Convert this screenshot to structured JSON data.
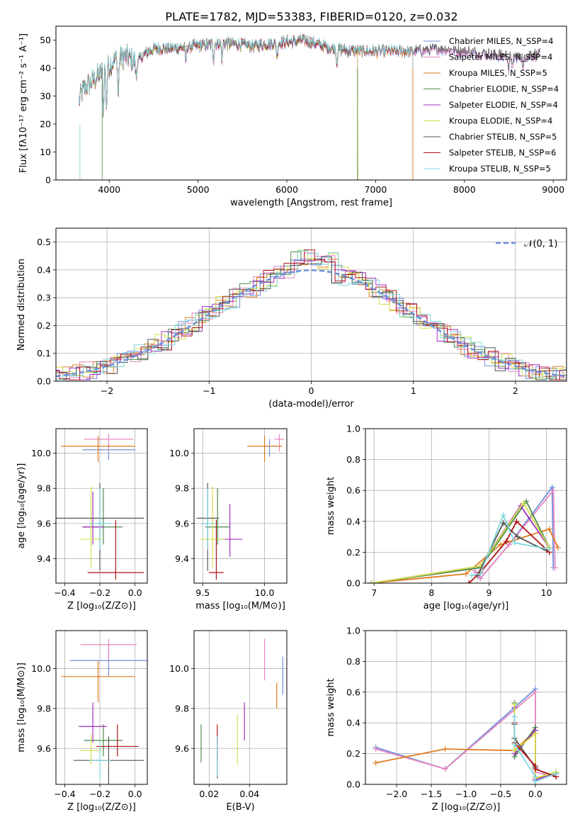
{
  "colors": [
    "#6f8fdc",
    "#e887bf",
    "#e07b1e",
    "#4b8a4b",
    "#a32cc1",
    "#d4e04a",
    "#555555",
    "#b01414",
    "#7fd6de"
  ],
  "chart_data": [
    {
      "id": "spectrum",
      "type": "line",
      "title": "PLATE=1782, MJD=53383, FIBERID=0120, z=0.032",
      "xlabel": "wavelength [Angstrom, rest frame]",
      "ylabel": "Flux [fλ10⁻¹⁷ erg cm⁻² s⁻¹ A⁻¹]",
      "xlim": [
        3400,
        9150
      ],
      "ylim": [
        0,
        55
      ],
      "xticks": [
        4000,
        5000,
        6000,
        7000,
        8000,
        9000
      ],
      "yticks": [
        0,
        10,
        20,
        30,
        40,
        50
      ],
      "grid": false,
      "legend_position": "right",
      "continuum": {
        "x": [
          3650,
          3700,
          3800,
          3900,
          4000,
          4100,
          4200,
          4300,
          4400,
          4500,
          4700,
          5000,
          5300,
          5600,
          5900,
          6200,
          6500,
          6800,
          7100,
          7400,
          7700,
          8000,
          8300,
          8600,
          8800
        ],
        "y": [
          27,
          32,
          35,
          38,
          41,
          44,
          44,
          42,
          45,
          47,
          47,
          48,
          49,
          48,
          49,
          50,
          47,
          46,
          46,
          46,
          47,
          46,
          45,
          44,
          45
        ]
      },
      "series": [
        {
          "name": "Chabrier MILES, N_SSP=4",
          "end": 8850
        },
        {
          "name": "Salpeter MILES, N_SSP=4",
          "end": 8850
        },
        {
          "name": "Kroupa MILES, N_SSP=5",
          "end": 7420
        },
        {
          "name": "Chabrier ELODIE, N_SSP=4",
          "end": 6800
        },
        {
          "name": "Salpeter ELODIE, N_SSP=4",
          "end": 6800
        },
        {
          "name": "Kroupa ELODIE, N_SSP=4",
          "end": 6800
        },
        {
          "name": "Chabrier STELIB, N_SSP=5",
          "end": 8850
        },
        {
          "name": "Salpeter STELIB, N_SSP=6",
          "end": 7420
        },
        {
          "name": "Kroupa STELIB, N_SSP=5",
          "end": 7420
        }
      ]
    },
    {
      "id": "residuals",
      "type": "line",
      "xlabel": "(data-model)/error",
      "ylabel": "Normed distribution",
      "xlim": [
        -2.5,
        2.5
      ],
      "ylim": [
        0,
        0.55
      ],
      "xticks": [
        -2,
        -1,
        0,
        1,
        2
      ],
      "yticks": [
        0.0,
        0.1,
        0.2,
        0.3,
        0.4,
        0.5
      ],
      "grid": true,
      "legend_position": "top-right",
      "reference": {
        "name": "𝒩(0, 1)",
        "mean": 0,
        "sigma": 1
      },
      "bin_width": 0.1
    },
    {
      "id": "age_vs_Z",
      "type": "scatter",
      "xlabel": "Z [log₁₀(Z/Z⊙)]",
      "ylabel": "age  [log₁₀(age/yr)]",
      "xlim": [
        -0.45,
        0.07
      ],
      "ylim": [
        9.26,
        10.14
      ],
      "xticks": [
        -0.4,
        -0.2,
        0.0
      ],
      "yticks": [
        9.4,
        9.6,
        9.8,
        10.0
      ],
      "grid": true,
      "points": [
        {
          "x": -0.15,
          "y": 10.02,
          "xerr": [
            0.15,
            0.15
          ],
          "yerr": [
            0.06,
            0.04
          ]
        },
        {
          "x": -0.15,
          "y": 10.08,
          "xerr": [
            0.14,
            0.14
          ],
          "yerr": [
            0.07,
            0.03
          ]
        },
        {
          "x": -0.21,
          "y": 10.04,
          "xerr": [
            0.21,
            0.21
          ],
          "yerr": [
            0.09,
            0.06
          ]
        },
        {
          "x": -0.18,
          "y": 9.58,
          "xerr": [
            0.11,
            0.11
          ],
          "yerr": [
            0.1,
            0.22
          ]
        },
        {
          "x": -0.24,
          "y": 9.58,
          "xerr": [
            0.06,
            0.06
          ],
          "yerr": [
            0.1,
            0.2
          ]
        },
        {
          "x": -0.25,
          "y": 9.51,
          "xerr": [
            0.06,
            0.06
          ],
          "yerr": [
            0.16,
            0.3
          ]
        },
        {
          "x": -0.2,
          "y": 9.63,
          "xerr": [
            0.25,
            0.25
          ],
          "yerr": [
            0.3,
            0.2
          ]
        },
        {
          "x": -0.11,
          "y": 9.32,
          "xerr": [
            0.16,
            0.16
          ],
          "yerr": [
            0.04,
            0.3
          ]
        },
        {
          "x": -0.2,
          "y": 9.6,
          "xerr": [
            0.06,
            0.06
          ],
          "yerr": [
            0.15,
            0.2
          ]
        }
      ]
    },
    {
      "id": "age_vs_mass",
      "type": "scatter",
      "xlabel": "mass [log₁₀(M/M⊙)]",
      "ylabel": "",
      "xlim": [
        9.43,
        10.18
      ],
      "ylim": [
        9.26,
        10.14
      ],
      "xticks": [
        9.5,
        10.0
      ],
      "yticks": [
        9.4,
        9.6,
        9.8,
        10.0
      ],
      "grid": true,
      "points": [
        {
          "x": 10.04,
          "y": 10.04,
          "xerr": [
            0.05,
            0.05
          ],
          "yerr": [
            0.06,
            0.04
          ]
        },
        {
          "x": 10.12,
          "y": 10.08,
          "xerr": [
            0.04,
            0.04
          ],
          "yerr": [
            0.07,
            0.03
          ]
        },
        {
          "x": 10.0,
          "y": 10.04,
          "xerr": [
            0.14,
            0.14
          ],
          "yerr": [
            0.09,
            0.06
          ]
        },
        {
          "x": 9.62,
          "y": 9.58,
          "xerr": [
            0.1,
            0.1
          ],
          "yerr": [
            0.1,
            0.22
          ]
        },
        {
          "x": 9.72,
          "y": 9.51,
          "xerr": [
            0.1,
            0.1
          ],
          "yerr": [
            0.1,
            0.2
          ]
        },
        {
          "x": 9.58,
          "y": 9.51,
          "xerr": [
            0.1,
            0.1
          ],
          "yerr": [
            0.16,
            0.3
          ]
        },
        {
          "x": 9.54,
          "y": 9.63,
          "xerr": [
            0.09,
            0.09
          ],
          "yerr": [
            0.3,
            0.2
          ]
        },
        {
          "x": 9.61,
          "y": 9.32,
          "xerr": [
            0.06,
            0.06
          ],
          "yerr": [
            0.04,
            0.3
          ]
        },
        {
          "x": 9.54,
          "y": 9.6,
          "xerr": [
            0.05,
            0.05
          ],
          "yerr": [
            0.15,
            0.2
          ]
        }
      ]
    },
    {
      "id": "massweight_vs_age",
      "type": "line",
      "xlabel": "age  [log₁₀(age/yr)]",
      "ylabel": "mass weight",
      "xlim": [
        6.85,
        10.35
      ],
      "ylim": [
        0,
        1.0
      ],
      "xticks": [
        7,
        8,
        9,
        10
      ],
      "yticks": [
        0.0,
        0.2,
        0.4,
        0.6,
        0.8,
        1.0
      ],
      "grid": true,
      "series": [
        {
          "x": [
            8.75,
            8.85,
            9.35,
            10.1,
            10.12
          ],
          "y": [
            0.08,
            0.03,
            0.25,
            0.62,
            0.1
          ]
        },
        {
          "x": [
            8.75,
            8.85,
            9.35,
            10.12,
            10.15
          ],
          "y": [
            0.08,
            0.03,
            0.25,
            0.6,
            0.1
          ]
        },
        {
          "x": [
            6.95,
            8.6,
            9.2,
            10.05,
            10.2
          ],
          "y": [
            0.0,
            0.06,
            0.25,
            0.35,
            0.23
          ]
        },
        {
          "x": [
            6.95,
            8.85,
            9.65,
            10.05
          ],
          "y": [
            0.0,
            0.1,
            0.53,
            0.23
          ]
        },
        {
          "x": [
            6.95,
            8.85,
            9.55,
            10.05
          ],
          "y": [
            0.0,
            0.11,
            0.5,
            0.23
          ]
        },
        {
          "x": [
            6.95,
            8.85,
            9.6,
            10.05
          ],
          "y": [
            0.0,
            0.11,
            0.52,
            0.23
          ]
        },
        {
          "x": [
            8.8,
            9.25,
            9.5,
            10.05
          ],
          "y": [
            0.05,
            0.39,
            0.3,
            0.2
          ]
        },
        {
          "x": [
            8.65,
            8.85,
            9.3,
            9.48,
            10.05
          ],
          "y": [
            0.0,
            0.07,
            0.27,
            0.4,
            0.2
          ]
        },
        {
          "x": [
            8.7,
            8.85,
            9.25,
            9.45,
            10.05
          ],
          "y": [
            0.05,
            0.06,
            0.44,
            0.26,
            0.22
          ]
        }
      ]
    },
    {
      "id": "mass_vs_Z",
      "type": "scatter",
      "xlabel": "Z [log₁₀(Z/Z⊙)]",
      "ylabel": "mass [log₁₀(M/M⊙)]",
      "xlim": [
        -0.45,
        0.07
      ],
      "ylim": [
        9.42,
        10.19
      ],
      "xticks": [
        -0.4,
        -0.2,
        0.0
      ],
      "yticks": [
        9.6,
        9.8,
        10.0
      ],
      "grid": true,
      "points": [
        {
          "x": -0.15,
          "y": 10.04,
          "xerr": [
            0.22,
            0.22
          ],
          "yerr": [
            0.08,
            0.08
          ]
        },
        {
          "x": -0.15,
          "y": 10.12,
          "xerr": [
            0.16,
            0.16
          ],
          "yerr": [
            0.08,
            0.03
          ]
        },
        {
          "x": -0.21,
          "y": 9.96,
          "xerr": [
            0.21,
            0.21
          ],
          "yerr": [
            0.13,
            0.08
          ]
        },
        {
          "x": -0.18,
          "y": 9.64,
          "xerr": [
            0.11,
            0.11
          ],
          "yerr": [
            0.08,
            0.08
          ]
        },
        {
          "x": -0.24,
          "y": 9.71,
          "xerr": [
            0.08,
            0.08
          ],
          "yerr": [
            0.08,
            0.12
          ]
        },
        {
          "x": -0.25,
          "y": 9.59,
          "xerr": [
            0.06,
            0.06
          ],
          "yerr": [
            0.07,
            0.08
          ]
        },
        {
          "x": -0.15,
          "y": 9.54,
          "xerr": [
            0.2,
            0.2
          ],
          "yerr": [
            0.12,
            0.12
          ]
        },
        {
          "x": -0.1,
          "y": 9.61,
          "xerr": [
            0.12,
            0.12
          ],
          "yerr": [
            0.05,
            0.11
          ]
        },
        {
          "x": -0.2,
          "y": 9.54,
          "xerr": [
            0.06,
            0.06
          ],
          "yerr": [
            0.09,
            0.09
          ]
        }
      ]
    },
    {
      "id": "mass_vs_ebv",
      "type": "scatter",
      "xlabel": "E(B-V)",
      "ylabel": "",
      "xlim": [
        0.0125,
        0.0585
      ],
      "ylim": [
        9.42,
        10.19
      ],
      "xticks": [
        0.02,
        0.04
      ],
      "yticks": [
        9.6,
        9.8,
        10.0
      ],
      "grid": true,
      "points": [
        {
          "x": 0.0565,
          "y": 9.96,
          "yerr": [
            0.09,
            0.1
          ]
        },
        {
          "x": 0.0475,
          "y": 10.04,
          "yerr": [
            0.1,
            0.11
          ]
        },
        {
          "x": 0.0535,
          "y": 9.87,
          "yerr": [
            0.07,
            0.06
          ]
        },
        {
          "x": 0.016,
          "y": 9.62,
          "yerr": [
            0.09,
            0.1
          ]
        },
        {
          "x": 0.0375,
          "y": 9.73,
          "yerr": [
            0.09,
            0.1
          ]
        },
        {
          "x": 0.034,
          "y": 9.64,
          "yerr": [
            0.12,
            0.13
          ]
        },
        {
          "x": 0.024,
          "y": 9.55,
          "yerr": [
            0.1,
            0.1
          ]
        },
        {
          "x": 0.024,
          "y": 9.62,
          "yerr": [
            0.08,
            0.1
          ]
        },
        {
          "x": 0.024,
          "y": 9.56,
          "yerr": [
            0.1,
            0.1
          ]
        }
      ]
    },
    {
      "id": "massweight_vs_Z",
      "type": "line",
      "xlabel": "Z [log₁₀(Z/Z⊙)]",
      "ylabel": "mass weight",
      "xlim": [
        -2.45,
        0.45
      ],
      "ylim": [
        0,
        1.0
      ],
      "xticks": [
        -2.0,
        -1.5,
        -1.0,
        -0.5,
        0.0
      ],
      "yticks": [
        0.0,
        0.2,
        0.4,
        0.6,
        0.8,
        1.0
      ],
      "grid": true,
      "series": [
        {
          "x": [
            -2.3,
            -1.3,
            0.0,
            0.0,
            0.3,
            0.3
          ],
          "y": [
            0.24,
            0.1,
            0.62,
            0.03,
            0.08,
            0.05
          ]
        },
        {
          "x": [
            -2.3,
            -1.3,
            0.0,
            0.0,
            0.3
          ],
          "y": [
            0.23,
            0.1,
            0.6,
            0.08,
            0.05
          ]
        },
        {
          "x": [
            -2.3,
            -1.3,
            -0.3,
            0.0,
            0.0,
            0.3
          ],
          "y": [
            0.14,
            0.23,
            0.22,
            0.35,
            0.04,
            0.07
          ]
        },
        {
          "x": [
            -0.3,
            -0.3,
            0.0,
            0.0,
            0.3
          ],
          "y": [
            0.53,
            0.18,
            0.37,
            0.02,
            0.08
          ]
        },
        {
          "x": [
            -0.3,
            -0.3,
            0.0,
            0.0,
            0.3
          ],
          "y": [
            0.5,
            0.2,
            0.35,
            0.03,
            0.07
          ]
        },
        {
          "x": [
            -0.3,
            -0.3,
            0.0,
            0.0,
            0.3
          ],
          "y": [
            0.52,
            0.22,
            0.33,
            0.04,
            0.08
          ]
        },
        {
          "x": [
            -0.3,
            -0.3,
            0.0,
            0.0,
            0.3
          ],
          "y": [
            0.39,
            0.3,
            0.11,
            0.1,
            0.05
          ]
        },
        {
          "x": [
            -0.3,
            -0.3,
            0.0,
            0.0,
            0.3
          ],
          "y": [
            0.4,
            0.27,
            0.12,
            0.1,
            0.05
          ]
        },
        {
          "x": [
            -0.3,
            -0.3,
            0.0,
            0.0,
            0.3
          ],
          "y": [
            0.44,
            0.26,
            0.05,
            0.02,
            0.07
          ]
        }
      ]
    }
  ]
}
